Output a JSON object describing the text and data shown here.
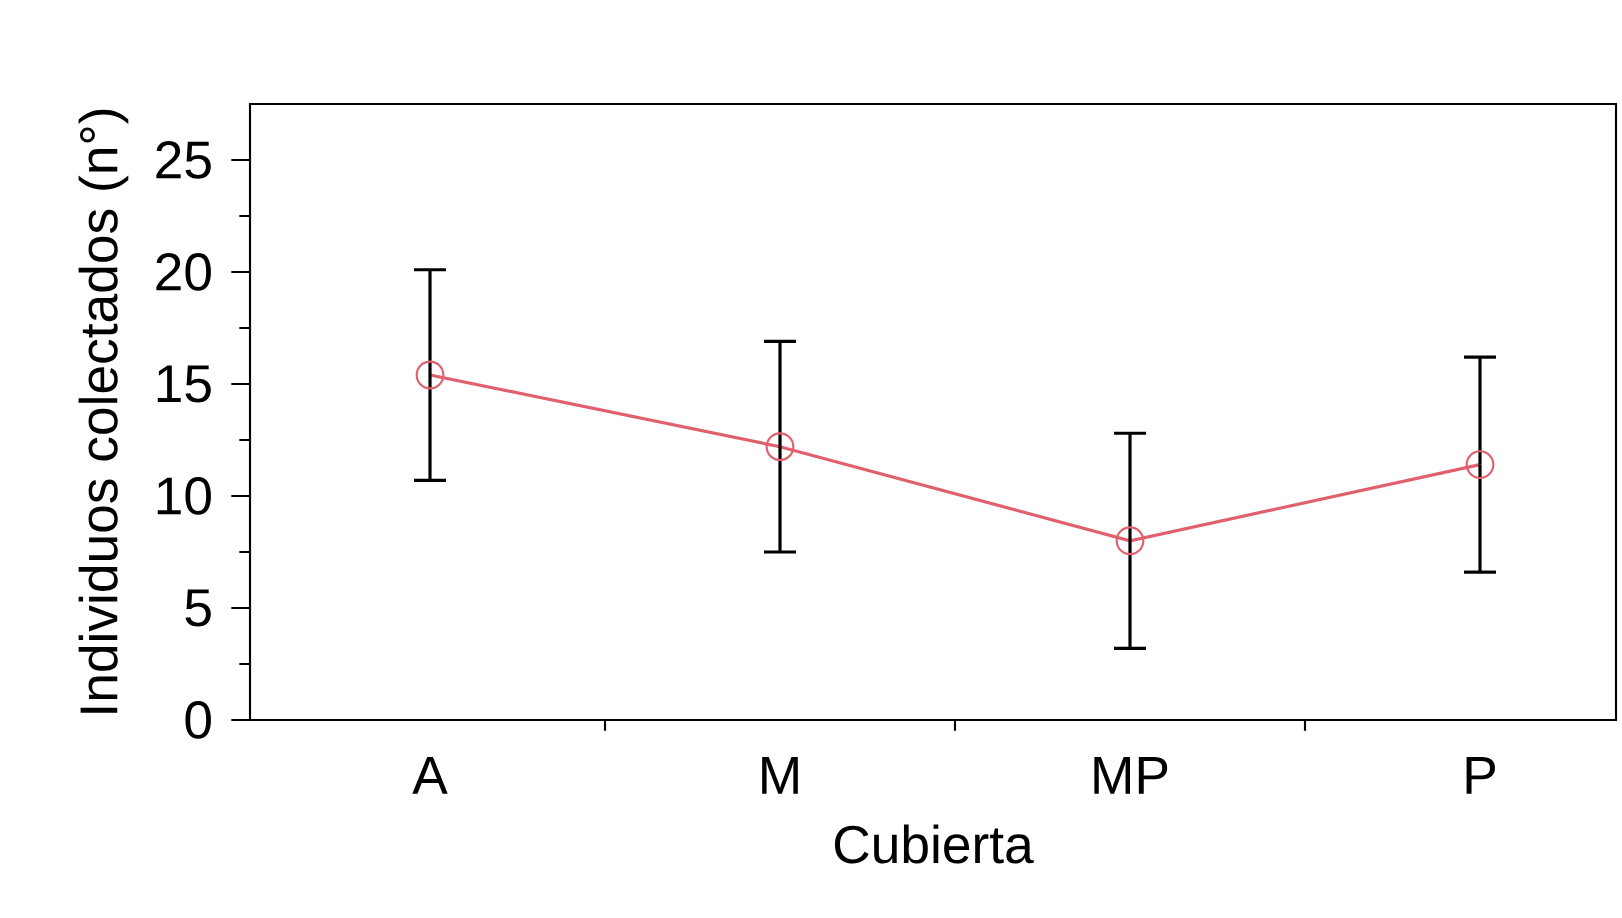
{
  "chart_data": {
    "type": "line",
    "xlabel": "Cubierta",
    "ylabel": "Individuos colectados (n°)",
    "categories": [
      "A",
      "M",
      "MP",
      "P"
    ],
    "series": [
      {
        "color": "#e0606e",
        "values": [
          15.4,
          12.2,
          8.0,
          11.4
        ],
        "errors": [
          4.7,
          4.7,
          4.8,
          4.8
        ]
      }
    ],
    "marker": "circle",
    "line_style": "solid",
    "ylim": [
      0,
      27.5
    ],
    "yticks": [
      0,
      5,
      10,
      15,
      20,
      25
    ]
  }
}
